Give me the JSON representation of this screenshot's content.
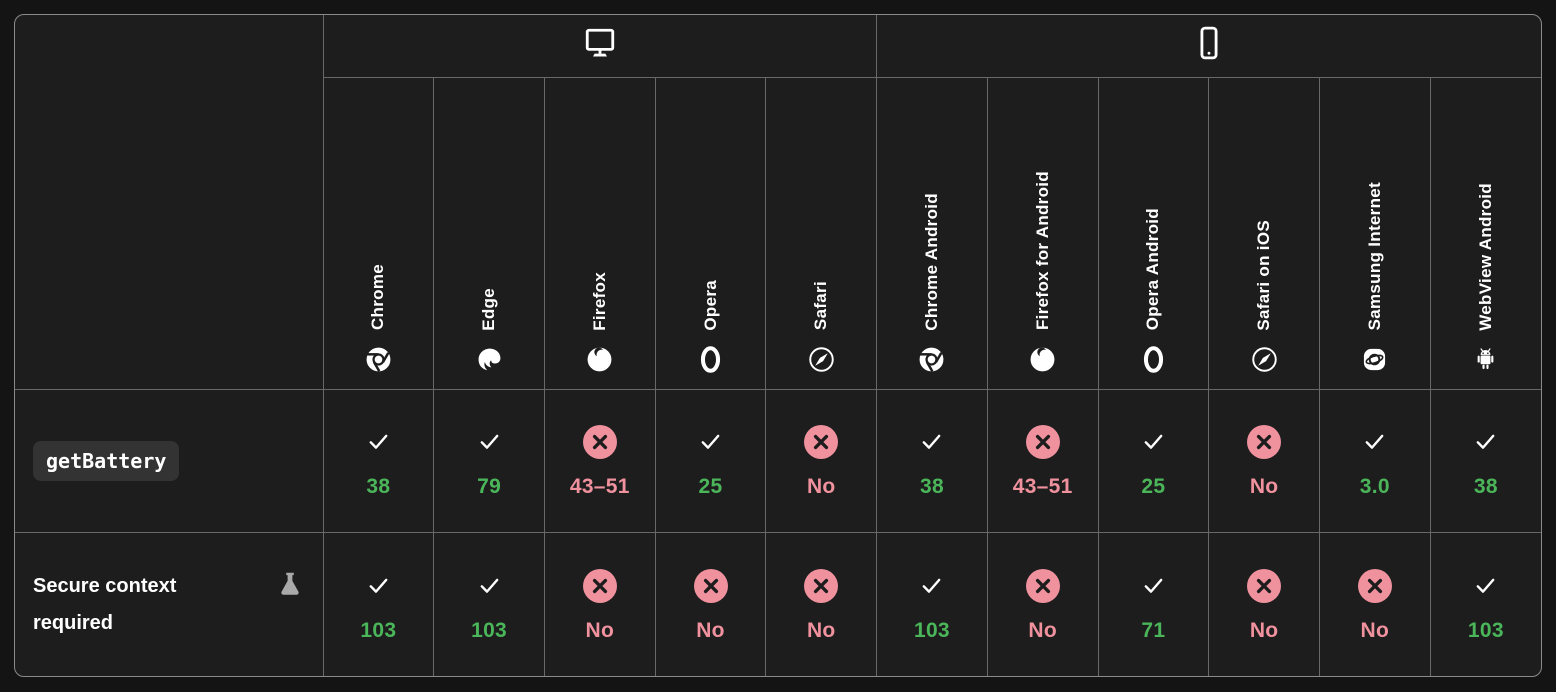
{
  "colors": {
    "page_background": "#141414",
    "table_background": "#1d1d1d",
    "supported": "#4BB55A",
    "unsupported": "#F0919E",
    "inner_border": "#686868",
    "outer_border": "#8a8a8a",
    "code_chip_background": "#333333",
    "flask_gray": "#a9a9a9"
  },
  "table": {
    "corner_label": "",
    "platforms": [
      {
        "name": "desktop",
        "icon": "desktop-icon",
        "colspan": 5
      },
      {
        "name": "mobile",
        "icon": "mobile-icon",
        "colspan": 6
      }
    ],
    "browsers": [
      {
        "name": "Chrome",
        "icon": "chrome-icon"
      },
      {
        "name": "Edge",
        "icon": "edge-icon"
      },
      {
        "name": "Firefox",
        "icon": "firefox-icon"
      },
      {
        "name": "Opera",
        "icon": "opera-icon"
      },
      {
        "name": "Safari",
        "icon": "safari-icon"
      },
      {
        "name": "Chrome Android",
        "icon": "chrome-icon"
      },
      {
        "name": "Firefox for Android",
        "icon": "firefox-icon"
      },
      {
        "name": "Opera Android",
        "icon": "opera-icon"
      },
      {
        "name": "Safari on iOS",
        "icon": "safari-icon"
      },
      {
        "name": "Samsung Internet",
        "icon": "samsung-icon"
      },
      {
        "name": "WebView Android",
        "icon": "webview-android-icon"
      }
    ],
    "rows": [
      {
        "label": "getBattery",
        "label_type": "code",
        "experimental": false,
        "support": [
          {
            "status": "yes",
            "version": "38"
          },
          {
            "status": "yes",
            "version": "79"
          },
          {
            "status": "no",
            "version": "43–51"
          },
          {
            "status": "yes",
            "version": "25"
          },
          {
            "status": "no",
            "version": "No"
          },
          {
            "status": "yes",
            "version": "38"
          },
          {
            "status": "no",
            "version": "43–51"
          },
          {
            "status": "yes",
            "version": "25"
          },
          {
            "status": "no",
            "version": "No"
          },
          {
            "status": "yes",
            "version": "3.0"
          },
          {
            "status": "yes",
            "version": "38"
          }
        ]
      },
      {
        "label": "Secure context required",
        "label_type": "text",
        "experimental": true,
        "support": [
          {
            "status": "yes",
            "version": "103"
          },
          {
            "status": "yes",
            "version": "103"
          },
          {
            "status": "no",
            "version": "No"
          },
          {
            "status": "no",
            "version": "No"
          },
          {
            "status": "no",
            "version": "No"
          },
          {
            "status": "yes",
            "version": "103"
          },
          {
            "status": "no",
            "version": "No"
          },
          {
            "status": "yes",
            "version": "71"
          },
          {
            "status": "no",
            "version": "No"
          },
          {
            "status": "no",
            "version": "No"
          },
          {
            "status": "yes",
            "version": "103"
          }
        ]
      }
    ]
  }
}
